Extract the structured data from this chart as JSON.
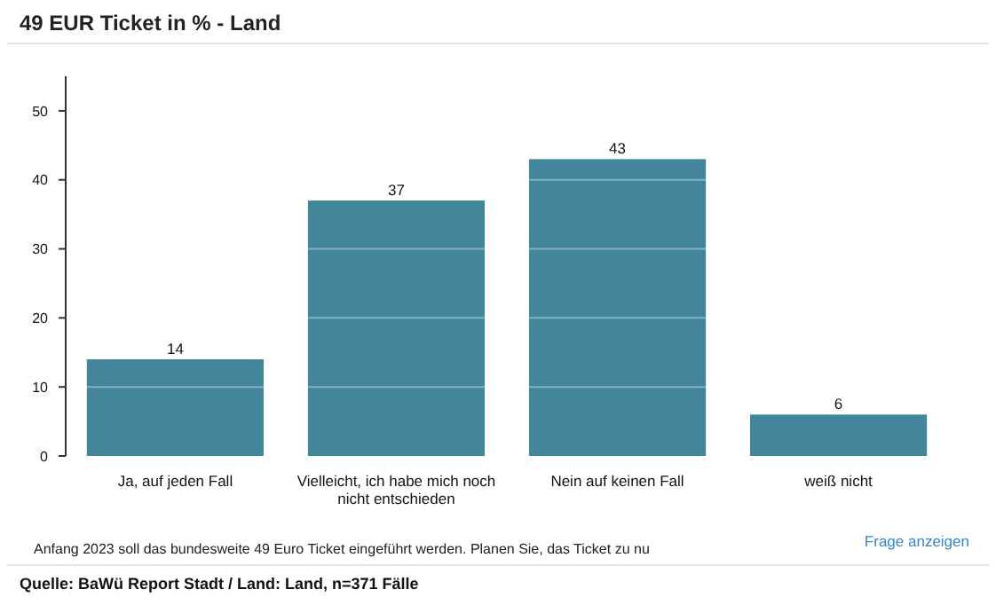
{
  "chart_data": {
    "type": "bar",
    "title": "49 EUR Ticket in % - Land",
    "categories": [
      "Ja, auf jeden Fall",
      "Vielleicht, ich habe mich noch nicht entschieden",
      "Nein auf keinen Fall",
      "weiß nicht"
    ],
    "values": [
      14,
      37,
      43,
      6
    ],
    "color": "#43869c",
    "ylim": [
      0,
      55
    ],
    "yticks": [
      0,
      10,
      20,
      30,
      40,
      50
    ],
    "grid": "y",
    "data_labels": true,
    "annotations": [
      "Anfang 2023 soll das bundesweite 49 Euro Ticket eingeführt werden. Planen Sie, das Ticket zu nu",
      "Frage anzeigen",
      "Quelle: BaWü Report Stadt / Land: Land, n=371 Fälle"
    ]
  }
}
